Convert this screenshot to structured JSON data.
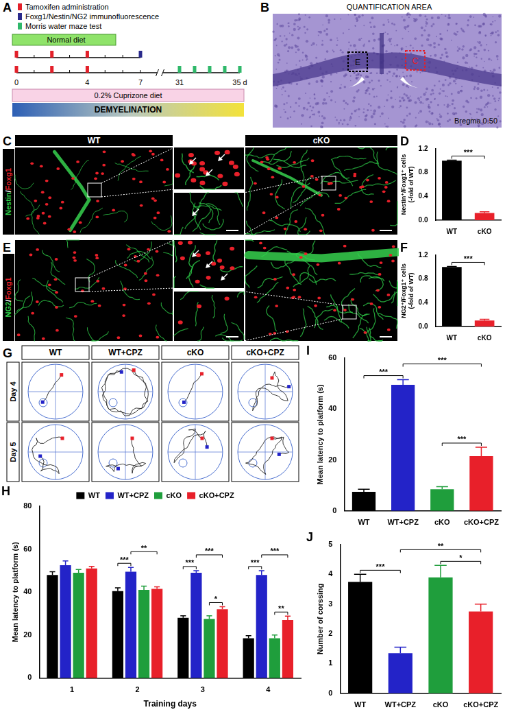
{
  "panels": {
    "A": {
      "letter": "A",
      "legend": [
        {
          "label": "Tamoxifen administration",
          "color": "#e3202a",
          "days": [
            [
              0,
              2,
              4
            ],
            [
              0,
              2,
              4
            ]
          ]
        },
        {
          "label": "Foxg1/Nestin/NG2 immunofluorescence",
          "color": "#2a2a8c",
          "days": [
            [
              7
            ],
            []
          ]
        },
        {
          "label": "Morris water maze test",
          "color": "#2fb86a",
          "days": [
            [],
            [
              31,
              32,
              33,
              34,
              35
            ]
          ]
        }
      ],
      "normal_diet": "Normal diet",
      "cuprizone_diet": "0.2% Cuprizone diet",
      "demyelination": "DEMYELINATION",
      "timeline_ticks": [
        0,
        4,
        7,
        31,
        {
          "value": 35,
          "label": "35 d"
        }
      ]
    },
    "B": {
      "letter": "B",
      "title": "QUANTIFICATION AREA",
      "bregma": "Bregma 0.50",
      "boxes": [
        {
          "label": "E",
          "color": "#000000"
        },
        {
          "label": "C",
          "color": "#e3202a"
        }
      ]
    },
    "C": {
      "letter": "C",
      "groups": [
        "WT",
        "cKO"
      ],
      "stain": [
        {
          "text": "Nestin",
          "color": "#2fd04a"
        },
        {
          "text": "/",
          "color": "#ffffff"
        },
        {
          "text": "Foxg1",
          "color": "#e8202a"
        }
      ]
    },
    "E": {
      "letter": "E",
      "stain": [
        {
          "text": "NG2",
          "color": "#2fd04a"
        },
        {
          "text": "/",
          "color": "#ffffff"
        },
        {
          "text": "Foxg1",
          "color": "#e8202a"
        }
      ]
    },
    "G": {
      "letter": "G",
      "groups": [
        "WT",
        "WT+CPZ",
        "cKO",
        "cKO+CPZ"
      ],
      "days": [
        "Day 4",
        "Day 5"
      ]
    }
  },
  "chart_data": [
    {
      "panel": "D",
      "type": "bar",
      "categories": [
        "WT",
        "cKO"
      ],
      "values": [
        1.0,
        0.12
      ],
      "errors": [
        0.01,
        0.02
      ],
      "colors": [
        "#000000",
        "#e8202a"
      ],
      "ylabel": [
        "Nestin⁺/Foxg1⁺ cells",
        "(-fold of WT)"
      ],
      "ylim": [
        0,
        1.2
      ],
      "yticks": [
        {
          "value": 0,
          "label": "0.0"
        },
        0.4,
        0.8,
        1.2
      ],
      "grid": false,
      "annotations": [
        {
          "between": [
            "WT",
            "cKO"
          ],
          "label": "***"
        }
      ]
    },
    {
      "panel": "F",
      "type": "bar",
      "categories": [
        "WT",
        "cKO"
      ],
      "values": [
        1.0,
        0.1
      ],
      "errors": [
        0.01,
        0.02
      ],
      "colors": [
        "#000000",
        "#e8202a"
      ],
      "ylabel": [
        "NG2⁺/Foxg1⁺ cells",
        "(-fold of WT)"
      ],
      "ylim": [
        0,
        1.2
      ],
      "yticks": [
        {
          "value": 0,
          "label": "0.0"
        },
        0.4,
        0.8,
        1.2
      ],
      "grid": false,
      "annotations": [
        {
          "between": [
            "WT",
            "cKO"
          ],
          "label": "***"
        }
      ]
    },
    {
      "panel": "H",
      "type": "bar",
      "categories": [
        "1",
        "2",
        "3",
        "4"
      ],
      "xlabel": "Training days",
      "ylabel": "Mean latency to platform (s)",
      "ylim": [
        0,
        80
      ],
      "yticks": [
        0,
        20,
        40,
        60,
        80
      ],
      "grid": false,
      "legend": "top",
      "series": [
        {
          "name": "WT",
          "color": "#000000",
          "values": [
            48,
            40.5,
            28,
            18.5
          ],
          "errors": [
            1.5,
            1.5,
            1,
            1.2
          ]
        },
        {
          "name": "WT+CPZ",
          "color": "#2323c8",
          "values": [
            52.5,
            49.5,
            49,
            48
          ],
          "errors": [
            2,
            2,
            1,
            2
          ]
        },
        {
          "name": "cKO",
          "color": "#1f9e3c",
          "values": [
            49,
            41,
            27.5,
            18.5
          ],
          "errors": [
            1.5,
            1.8,
            1.5,
            1.5
          ]
        },
        {
          "name": "cKO+CPZ",
          "color": "#e8202a",
          "values": [
            51,
            41.5,
            32,
            27
          ],
          "errors": [
            1,
            1,
            1.2,
            1.8
          ]
        }
      ],
      "annotations": [
        {
          "category": "2",
          "between": [
            "WT",
            "WT+CPZ"
          ],
          "label": "***"
        },
        {
          "category": "2",
          "between": [
            "WT+CPZ",
            "cKO+CPZ"
          ],
          "label": "**"
        },
        {
          "category": "3",
          "between": [
            "WT",
            "WT+CPZ"
          ],
          "label": "***"
        },
        {
          "category": "3",
          "between": [
            "WT+CPZ",
            "cKO+CPZ"
          ],
          "label": "***"
        },
        {
          "category": "3",
          "between": [
            "cKO",
            "cKO+CPZ"
          ],
          "label": "*"
        },
        {
          "category": "4",
          "between": [
            "WT",
            "WT+CPZ"
          ],
          "label": "***"
        },
        {
          "category": "4",
          "between": [
            "WT+CPZ",
            "cKO+CPZ"
          ],
          "label": "***"
        },
        {
          "category": "4",
          "between": [
            "cKO",
            "cKO+CPZ"
          ],
          "label": "**"
        }
      ]
    },
    {
      "panel": "I",
      "type": "bar",
      "categories": [
        "WT",
        "WT+CPZ",
        "cKO",
        "cKO+CPZ"
      ],
      "values": [
        7.5,
        49.5,
        8.5,
        21.5
      ],
      "errors": [
        1,
        2,
        1,
        3.5
      ],
      "colors": [
        "#000000",
        "#2323c8",
        "#1f9e3c",
        "#e8202a"
      ],
      "ylabel": "Mean latency to platform (s)",
      "ylim": [
        0,
        60
      ],
      "yticks": [
        0,
        20,
        40,
        60
      ],
      "grid": false,
      "annotations": [
        {
          "between": [
            "WT",
            "WT+CPZ"
          ],
          "label": "***"
        },
        {
          "between": [
            "WT+CPZ",
            "cKO+CPZ"
          ],
          "label": "***"
        },
        {
          "between": [
            "cKO",
            "cKO+CPZ"
          ],
          "label": "***"
        }
      ]
    },
    {
      "panel": "J",
      "type": "bar",
      "categories": [
        "WT",
        "WT+CPZ",
        "cKO",
        "cKO+CPZ"
      ],
      "values": [
        3.75,
        1.35,
        3.9,
        2.75
      ],
      "errors": [
        0.25,
        0.2,
        0.4,
        0.25
      ],
      "colors": [
        "#000000",
        "#2323c8",
        "#1f9e3c",
        "#e8202a"
      ],
      "ylabel": "Number of corssing",
      "ylim": [
        0,
        5
      ],
      "yticks": [
        0,
        1,
        2,
        3,
        4,
        5
      ],
      "grid": false,
      "annotations": [
        {
          "between": [
            "WT",
            "WT+CPZ"
          ],
          "label": "***"
        },
        {
          "between": [
            "WT+CPZ",
            "cKO+CPZ"
          ],
          "label": "**"
        },
        {
          "between": [
            "cKO",
            "cKO+CPZ"
          ],
          "label": "*"
        }
      ]
    }
  ]
}
